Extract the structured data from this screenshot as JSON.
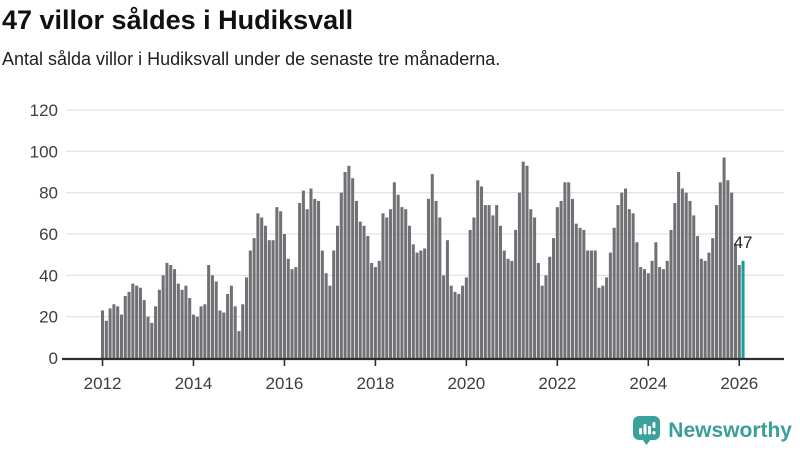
{
  "header": {
    "title": "47 villor såldes i Hudiksvall",
    "subtitle": "Antal sålda villor i Hudiksvall under de senaste tre månaderna."
  },
  "chart_data": {
    "type": "bar",
    "title": "47 villor såldes i Hudiksvall",
    "subtitle": "Antal sålda villor i Hudiksvall under de senaste tre månaderna.",
    "ylim": [
      0,
      120
    ],
    "y_ticks": [
      0,
      20,
      40,
      60,
      80,
      100,
      120
    ],
    "x_tick_labels": [
      "2012",
      "2014",
      "2016",
      "2018",
      "2020",
      "2022",
      "2024",
      "2026"
    ],
    "months_per_x_tick": 24,
    "grid": true,
    "bar_color": "#717175",
    "highlight_color": "#14a09e",
    "axis_color": "#2e2e2e",
    "grid_color": "#e4e4e4",
    "tick_text_color": "#3d3d3d",
    "values": [
      23,
      18,
      24,
      26,
      25,
      21,
      30,
      32,
      36,
      35,
      34,
      28,
      20,
      17,
      25,
      33,
      40,
      46,
      45,
      43,
      36,
      33,
      35,
      29,
      21,
      20,
      25,
      26,
      45,
      40,
      37,
      23,
      22,
      31,
      35,
      25,
      13,
      26,
      39,
      52,
      58,
      70,
      68,
      64,
      57,
      57,
      73,
      71,
      60,
      48,
      43,
      44,
      75,
      81,
      72,
      82,
      77,
      76,
      52,
      41,
      35,
      52,
      64,
      80,
      90,
      93,
      87,
      76,
      66,
      64,
      59,
      46,
      44,
      47,
      70,
      68,
      72,
      85,
      79,
      73,
      72,
      64,
      55,
      51,
      52,
      53,
      77,
      89,
      76,
      68,
      40,
      57,
      35,
      32,
      31,
      35,
      39,
      62,
      68,
      86,
      83,
      74,
      74,
      69,
      74,
      64,
      52,
      48,
      47,
      62,
      80,
      95,
      93,
      72,
      68,
      46,
      35,
      40,
      49,
      58,
      73,
      76,
      85,
      85,
      77,
      65,
      63,
      62,
      52,
      52,
      52,
      34,
      35,
      39,
      51,
      63,
      74,
      80,
      82,
      72,
      70,
      56,
      44,
      43,
      41,
      47,
      56,
      44,
      43,
      47,
      62,
      75,
      90,
      82,
      80,
      76,
      69,
      59,
      48,
      47,
      51,
      58,
      74,
      85,
      97,
      86,
      80,
      55,
      45,
      47
    ],
    "highlight": {
      "index": 169,
      "label": "47",
      "value": 47
    }
  },
  "footer": {
    "brand": "Newsworthy",
    "brand_color": "#3b9f99",
    "logo_icon": "newsworthy-bubble-chart-icon",
    "logo_color": "#3aa29b"
  }
}
